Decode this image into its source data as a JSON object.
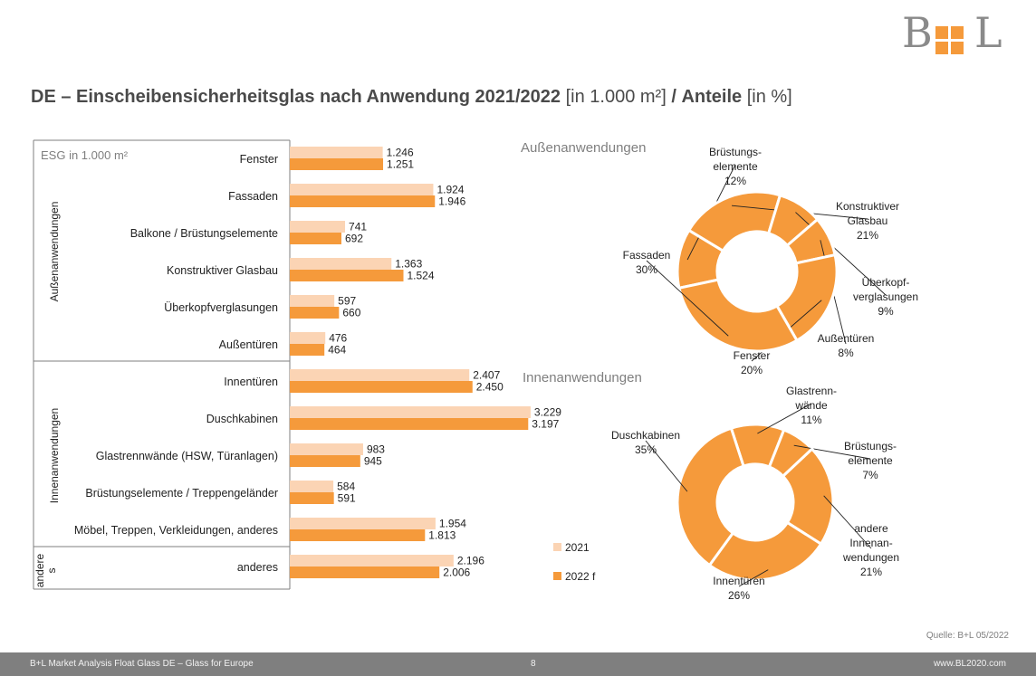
{
  "logo": {
    "left": "B",
    "right": "L"
  },
  "title": {
    "main": "DE – Einscheibensicherheitsglas nach Anwendung 2021/2022",
    "unit": "[in 1.000 m²]",
    "slash": "/",
    "share": "Anteile",
    "share_unit": "[in %]"
  },
  "colors": {
    "y2021": "#fbd4b4",
    "y2022": "#f59a3b",
    "pie": "#f59a3b",
    "footer": "#7f7f7f"
  },
  "chart_data": [
    {
      "type": "bar",
      "orientation": "horizontal",
      "unit_label": "ESG in 1.000 m²",
      "groups": [
        {
          "label": "Außenanwendungen",
          "categories": [
            "Fenster",
            "Fassaden",
            "Balkone / Brüstungselemente",
            "Konstruktiver Glasbau",
            "Überkopfverglasungen",
            "Außentüren"
          ]
        },
        {
          "label": "Innenanwendungen",
          "categories": [
            "Innentüren",
            "Duschkabinen",
            "Glastrennwände (HSW, Türanlagen)",
            "Brüstungselemente / Treppengeländer",
            "Möbel, Treppen, Verkleidungen, anderes"
          ]
        },
        {
          "label": "andere s",
          "categories": [
            "anderes"
          ]
        }
      ],
      "categories": [
        "Fenster",
        "Fassaden",
        "Balkone / Brüstungselemente",
        "Konstruktiver Glasbau",
        "Überkopfverglasungen",
        "Außentüren",
        "Innentüren",
        "Duschkabinen",
        "Glastrennwände (HSW, Türanlagen)",
        "Brüstungselemente / Treppengeländer",
        "Möbel, Treppen, Verkleidungen, anderes",
        "anderes"
      ],
      "series": [
        {
          "name": "2021",
          "values": [
            1246,
            1924,
            741,
            1363,
            597,
            476,
            2407,
            3229,
            983,
            584,
            1954,
            2196
          ],
          "labels": [
            "1.246",
            "1.924",
            "741",
            "1.363",
            "597",
            "476",
            "2.407",
            "3.229",
            "983",
            "584",
            "1.954",
            "2.196"
          ]
        },
        {
          "name": "2022 f",
          "values": [
            1251,
            1946,
            692,
            1524,
            660,
            464,
            2450,
            3197,
            945,
            591,
            1813,
            2006
          ],
          "labels": [
            "1.251",
            "1.946",
            "692",
            "1.524",
            "660",
            "464",
            "2.450",
            "3.197",
            "945",
            "591",
            "1.813",
            "2.006"
          ]
        }
      ],
      "xlim": [
        0,
        3400
      ]
    },
    {
      "type": "pie",
      "donut": true,
      "title": "Außenanwendungen",
      "slices": [
        {
          "lines": [
            "Brüstungs-",
            "elemente",
            "12%"
          ],
          "value": 12
        },
        {
          "lines": [
            "Konstruktiver",
            "Glasbau",
            "21%"
          ],
          "value": 21
        },
        {
          "lines": [
            "Überkopf-",
            "verglasungen",
            "9%"
          ],
          "value": 9
        },
        {
          "lines": [
            "Außentüren",
            "8%"
          ],
          "value": 8
        },
        {
          "lines": [
            "Fenster",
            "20%"
          ],
          "value": 20
        },
        {
          "lines": [
            "Fassaden",
            "30%"
          ],
          "value": 30
        }
      ]
    },
    {
      "type": "pie",
      "donut": true,
      "title": "Innenanwendungen",
      "slices": [
        {
          "lines": [
            "Glastrenn-",
            "wände",
            "11%"
          ],
          "value": 11
        },
        {
          "lines": [
            "Brüstungs-",
            "elemente",
            "7%"
          ],
          "value": 7
        },
        {
          "lines": [
            "andere",
            "Innenan-",
            "wendungen",
            "21%"
          ],
          "value": 21
        },
        {
          "lines": [
            "Innentüren",
            "26%"
          ],
          "value": 26
        },
        {
          "lines": [
            "Duschkabinen",
            "35%"
          ],
          "value": 35
        }
      ]
    }
  ],
  "source": "Quelle: B+L 05/2022",
  "footer": {
    "left": "B+L Market Analysis Float Glass DE – Glass for Europe",
    "page": "8",
    "right": "www.BL2020.com"
  }
}
